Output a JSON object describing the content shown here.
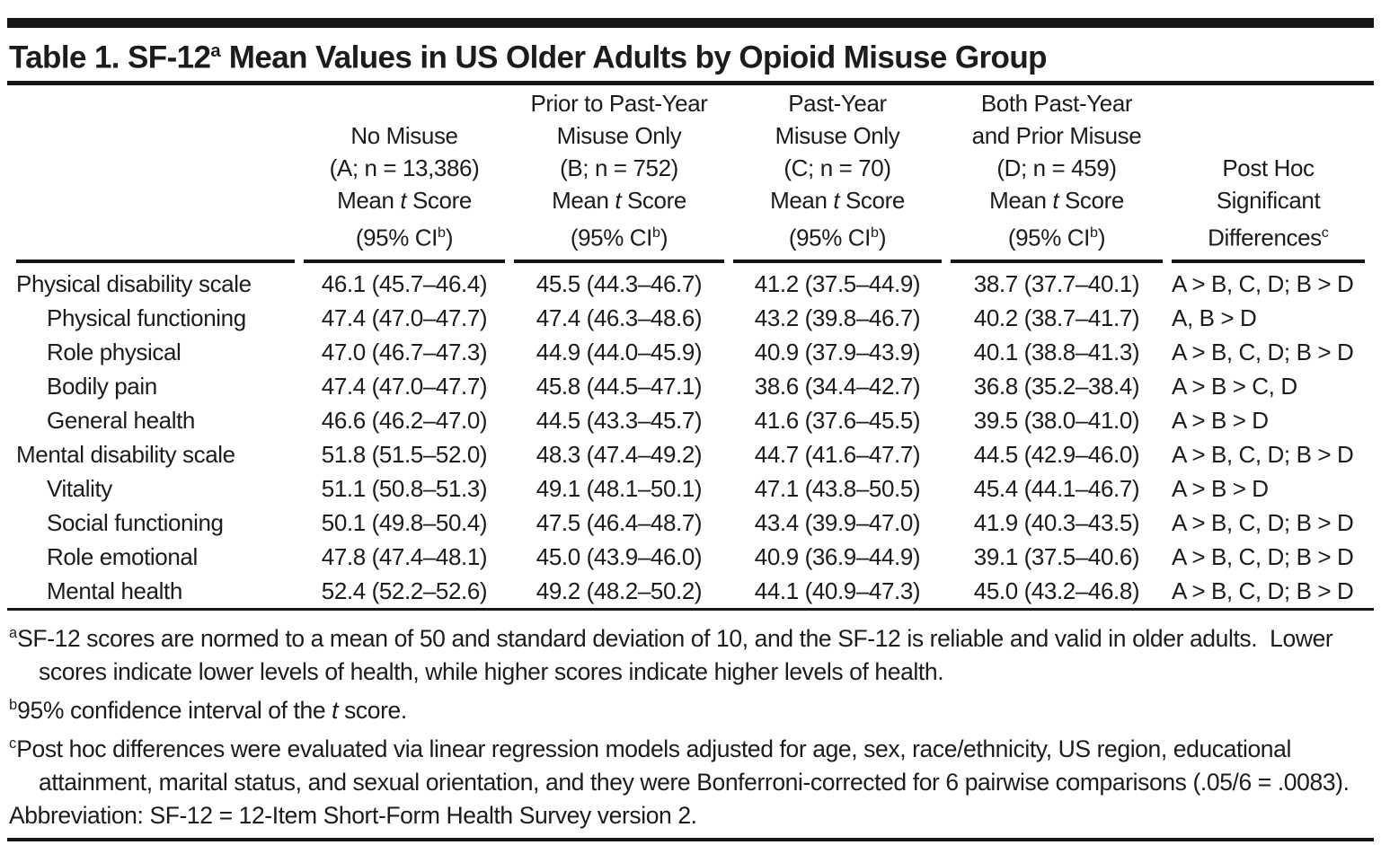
{
  "title": {
    "pre": "Table 1. SF-12",
    "sup": "a",
    "post": " Mean Values in US Older Adults by Opioid Misuse Group"
  },
  "table": {
    "header": {
      "columns": [
        {
          "group_lines": [
            "No Misuse"
          ],
          "n_line": "(A; n = 13,386)"
        },
        {
          "group_lines": [
            "Prior to Past-Year",
            "Misuse Only"
          ],
          "n_line": "(B; n = 752)"
        },
        {
          "group_lines": [
            "Past-Year",
            "Misuse Only"
          ],
          "n_line": "(C; n = 70)"
        },
        {
          "group_lines": [
            "Both Past-Year",
            "and Prior Misuse"
          ],
          "n_line": "(D; n = 459)"
        }
      ],
      "mean_line": {
        "pre": "Mean ",
        "italic": "t",
        "post": " Score"
      },
      "ci_line": {
        "pre": "(95% CI",
        "sup": "b",
        "post": ")"
      },
      "posthoc": {
        "line1": "Post Hoc",
        "line2": "Significant",
        "line3": "Differences",
        "sup": "c"
      }
    },
    "rows": [
      {
        "label": "Physical disability scale",
        "indent": false,
        "values": [
          "46.1 (45.7–46.4)",
          "45.5 (44.3–46.7)",
          "41.2 (37.5–44.9)",
          "38.7 (37.7–40.1)"
        ],
        "posthoc": "A > B, C, D; B > D"
      },
      {
        "label": "Physical functioning",
        "indent": true,
        "values": [
          "47.4 (47.0–47.7)",
          "47.4 (46.3–48.6)",
          "43.2 (39.8–46.7)",
          "40.2 (38.7–41.7)"
        ],
        "posthoc": "A, B > D"
      },
      {
        "label": "Role physical",
        "indent": true,
        "values": [
          "47.0 (46.7–47.3)",
          "44.9 (44.0–45.9)",
          "40.9 (37.9–43.9)",
          "40.1 (38.8–41.3)"
        ],
        "posthoc": "A > B, C, D; B > D"
      },
      {
        "label": "Bodily pain",
        "indent": true,
        "values": [
          "47.4 (47.0–47.7)",
          "45.8 (44.5–47.1)",
          "38.6 (34.4–42.7)",
          "36.8 (35.2–38.4)"
        ],
        "posthoc": "A > B > C, D"
      },
      {
        "label": "General health",
        "indent": true,
        "values": [
          "46.6 (46.2–47.0)",
          "44.5 (43.3–45.7)",
          "41.6 (37.6–45.5)",
          "39.5 (38.0–41.0)"
        ],
        "posthoc": "A > B > D"
      },
      {
        "label": "Mental disability scale",
        "indent": false,
        "values": [
          "51.8 (51.5–52.0)",
          "48.3 (47.4–49.2)",
          "44.7 (41.6–47.7)",
          "44.5 (42.9–46.0)"
        ],
        "posthoc": "A > B, C, D; B > D"
      },
      {
        "label": "Vitality",
        "indent": true,
        "values": [
          "51.1 (50.8–51.3)",
          "49.1 (48.1–50.1)",
          "47.1 (43.8–50.5)",
          "45.4 (44.1–46.7)"
        ],
        "posthoc": "A > B > D"
      },
      {
        "label": "Social functioning",
        "indent": true,
        "values": [
          "50.1 (49.8–50.4)",
          "47.5 (46.4–48.7)",
          "43.4 (39.9–47.0)",
          "41.9 (40.3–43.5)"
        ],
        "posthoc": "A > B, C, D; B > D"
      },
      {
        "label": "Role emotional",
        "indent": true,
        "values": [
          "47.8 (47.4–48.1)",
          "45.0 (43.9–46.0)",
          "40.9 (36.9–44.9)",
          "39.1 (37.5–40.6)"
        ],
        "posthoc": "A > B, C, D; B > D"
      },
      {
        "label": "Mental health",
        "indent": true,
        "values": [
          "52.4 (52.2–52.6)",
          "49.2 (48.2–50.2)",
          "44.1 (40.9–47.3)",
          "45.0 (43.2–46.8)"
        ],
        "posthoc": "A > B, C, D; B > D"
      }
    ]
  },
  "footnotes": {
    "a": {
      "marker": "a",
      "text": "SF-12 scores are normed to a mean of 50 and standard deviation of 10, and the SF-12 is reliable and valid in older adults.  Lower scores indicate lower levels of health, while higher scores indicate higher levels of health."
    },
    "b": {
      "marker": "b",
      "pre": "95% confidence interval of the ",
      "italic": "t",
      "post": " score."
    },
    "c": {
      "marker": "c",
      "text": "Post hoc differences were evaluated via linear regression models adjusted for age, sex, race/ethnicity, US region, educational attainment, marital status, and sexual orientation, and they were Bonferroni-corrected for 6 pairwise comparisons (.05/6 = .0083)."
    },
    "abbreviation": "Abbreviation: SF-12 = 12-Item Short-Form Health Survey version 2."
  },
  "colors": {
    "text": "#1c1c1c",
    "rule": "#161616",
    "background": "#ffffff"
  }
}
